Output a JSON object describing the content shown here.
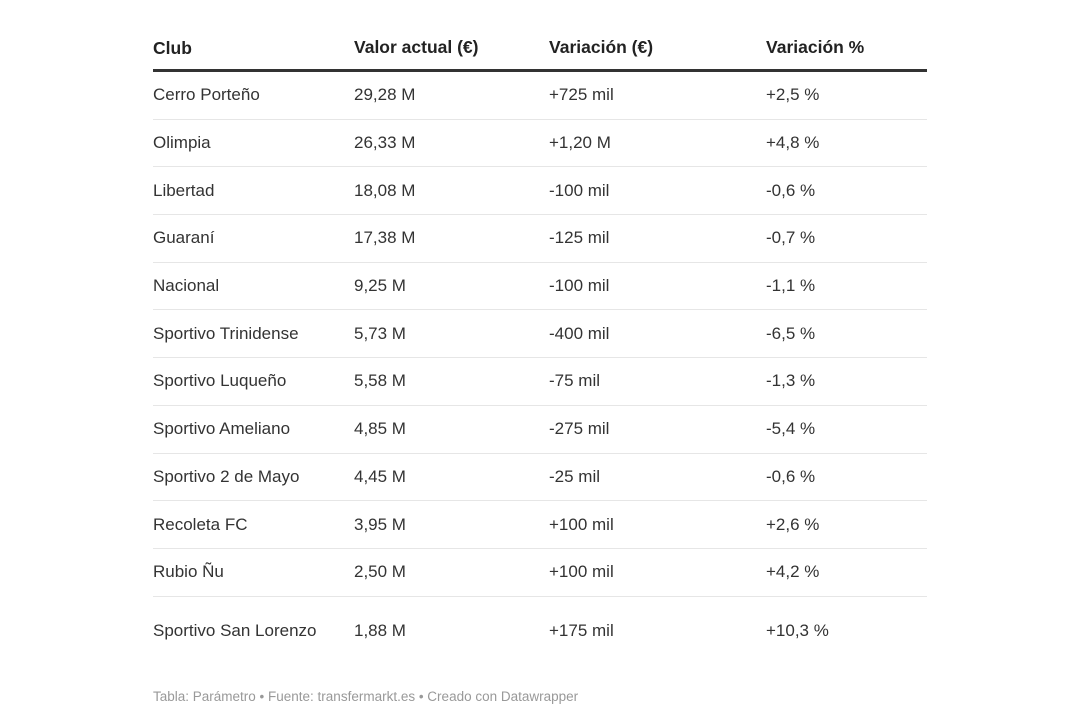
{
  "table": {
    "headers": [
      "Club",
      "Valor actual (€)",
      "Variación (€)",
      "Variación %"
    ],
    "rows": [
      [
        "Cerro Porteño",
        "29,28 M",
        "+725 mil",
        "+2,5 %"
      ],
      [
        "Olimpia",
        "26,33 M",
        "+1,20 M",
        "+4,8 %"
      ],
      [
        "Libertad",
        "18,08 M",
        "-100 mil",
        "-0,6 %"
      ],
      [
        "Guaraní",
        "17,38 M",
        "-125 mil",
        "-0,7 %"
      ],
      [
        "Nacional",
        "9,25 M",
        "-100 mil",
        "-1,1 %"
      ],
      [
        "Sportivo Trinidense",
        "5,73 M",
        "-400 mil",
        "-6,5 %"
      ],
      [
        "Sportivo Luqueño",
        "5,58 M",
        "-75 mil",
        "-1,3 %"
      ],
      [
        "Sportivo Ameliano",
        "4,85 M",
        "-275 mil",
        "-5,4 %"
      ],
      [
        "Sportivo 2 de Mayo",
        "4,45 M",
        "-25 mil",
        "-0,6 %"
      ],
      [
        "Recoleta FC",
        "3,95 M",
        "+100 mil",
        "+2,6 %"
      ],
      [
        "Rubio Ñu",
        "2,50 M",
        "+100 mil",
        "+4,2 %"
      ],
      [
        "Sportivo San Lorenzo",
        "1,88 M",
        "+175 mil",
        "+10,3 %"
      ]
    ]
  },
  "footer": "Tabla: Parámetro  • Fuente: transfermarkt.es • Creado con Datawrapper"
}
